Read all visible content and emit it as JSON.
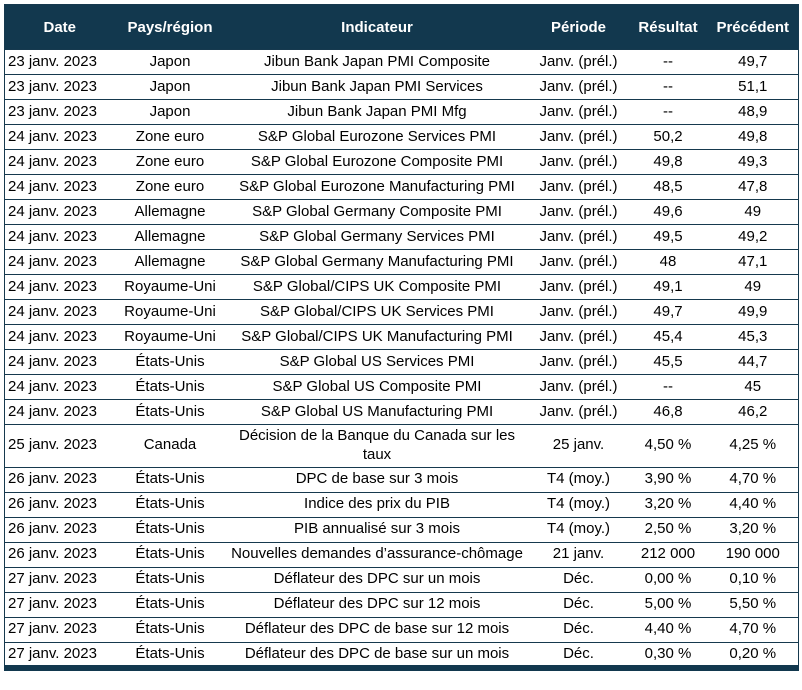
{
  "colors": {
    "header_bg": "#12384e",
    "border": "#16394e",
    "header_text": "#ffffff",
    "row_bg": "#ffffff",
    "body_text": "#000000"
  },
  "table": {
    "headers": [
      {
        "key": "date",
        "label": "Date"
      },
      {
        "key": "region",
        "label": "Pays/région"
      },
      {
        "key": "indicator",
        "label": "Indicateur"
      },
      {
        "key": "period",
        "label": "Période"
      },
      {
        "key": "result",
        "label": "Résultat"
      },
      {
        "key": "previous",
        "label": "Précédent"
      }
    ],
    "rows": [
      {
        "date": "23 janv. 2023",
        "region": "Japon",
        "indicator": "Jibun Bank Japan PMI Composite",
        "period": "Janv. (prél.)",
        "result": "--",
        "previous": "49,7"
      },
      {
        "date": "23 janv. 2023",
        "region": "Japon",
        "indicator": "Jibun Bank Japan PMI Services",
        "period": "Janv. (prél.)",
        "result": "--",
        "previous": "51,1"
      },
      {
        "date": "23 janv. 2023",
        "region": "Japon",
        "indicator": "Jibun Bank Japan PMI Mfg",
        "period": "Janv. (prél.)",
        "result": "--",
        "previous": "48,9"
      },
      {
        "date": "24 janv. 2023",
        "region": "Zone euro",
        "indicator": "S&P Global Eurozone Services PMI",
        "period": "Janv. (prél.)",
        "result": "50,2",
        "previous": "49,8"
      },
      {
        "date": "24 janv. 2023",
        "region": "Zone euro",
        "indicator": "S&P Global Eurozone Composite PMI",
        "period": "Janv. (prél.)",
        "result": "49,8",
        "previous": "49,3"
      },
      {
        "date": "24 janv. 2023",
        "region": "Zone euro",
        "indicator": "S&P Global Eurozone Manufacturing PMI",
        "period": "Janv. (prél.)",
        "result": "48,5",
        "previous": "47,8"
      },
      {
        "date": "24 janv. 2023",
        "region": "Allemagne",
        "indicator": "S&P Global Germany Composite PMI",
        "period": "Janv. (prél.)",
        "result": "49,6",
        "previous": "49"
      },
      {
        "date": "24 janv. 2023",
        "region": "Allemagne",
        "indicator": "S&P Global Germany Services PMI",
        "period": "Janv. (prél.)",
        "result": "49,5",
        "previous": "49,2"
      },
      {
        "date": "24 janv. 2023",
        "region": "Allemagne",
        "indicator": "S&P Global Germany Manufacturing PMI",
        "period": "Janv. (prél.)",
        "result": "48",
        "previous": "47,1"
      },
      {
        "date": "24 janv. 2023",
        "region": "Royaume-Uni",
        "indicator": "S&P Global/CIPS UK Composite PMI",
        "period": "Janv. (prél.)",
        "result": "49,1",
        "previous": "49"
      },
      {
        "date": "24 janv. 2023",
        "region": "Royaume-Uni",
        "indicator": "S&P Global/CIPS UK Services PMI",
        "period": "Janv. (prél.)",
        "result": "49,7",
        "previous": "49,9"
      },
      {
        "date": "24 janv. 2023",
        "region": "Royaume-Uni",
        "indicator": "S&P Global/CIPS UK Manufacturing PMI",
        "period": "Janv. (prél.)",
        "result": "45,4",
        "previous": "45,3"
      },
      {
        "date": "24 janv. 2023",
        "region": "États-Unis",
        "indicator": "S&P Global US Services PMI",
        "period": "Janv. (prél.)",
        "result": "45,5",
        "previous": "44,7"
      },
      {
        "date": "24 janv. 2023",
        "region": "États-Unis",
        "indicator": "S&P Global US Composite PMI",
        "period": "Janv. (prél.)",
        "result": "--",
        "previous": "45"
      },
      {
        "date": "24 janv. 2023",
        "region": "États-Unis",
        "indicator": "S&P Global US Manufacturing PMI",
        "period": "Janv. (prél.)",
        "result": "46,8",
        "previous": "46,2"
      },
      {
        "date": "25 janv. 2023",
        "region": "Canada",
        "indicator": "Décision de la Banque du Canada sur les taux",
        "period": "25 janv.",
        "result": "4,50 %",
        "previous": "4,25 %"
      },
      {
        "date": "26 janv. 2023",
        "region": "États-Unis",
        "indicator": "DPC de base sur 3 mois",
        "period": "T4 (moy.)",
        "result": "3,90 %",
        "previous": "4,70 %"
      },
      {
        "date": "26 janv. 2023",
        "region": "États-Unis",
        "indicator": "Indice des prix du PIB",
        "period": "T4 (moy.)",
        "result": "3,20 %",
        "previous": "4,40 %"
      },
      {
        "date": "26 janv. 2023",
        "region": "États-Unis",
        "indicator": "PIB annualisé sur 3 mois",
        "period": "T4 (moy.)",
        "result": "2,50 %",
        "previous": "3,20 %"
      },
      {
        "date": "26 janv. 2023",
        "region": "États-Unis",
        "indicator": "Nouvelles demandes d’assurance-chômage",
        "period": "21 janv.",
        "result": "212 000",
        "previous": "190 000"
      },
      {
        "date": "27 janv. 2023",
        "region": "États-Unis",
        "indicator": "Déflateur des DPC sur un mois",
        "period": "Déc.",
        "result": "0,00 %",
        "previous": "0,10 %"
      },
      {
        "date": "27 janv. 2023",
        "region": "États-Unis",
        "indicator": "Déflateur des DPC sur 12 mois",
        "period": "Déc.",
        "result": "5,00 %",
        "previous": "5,50 %"
      },
      {
        "date": "27 janv. 2023",
        "region": "États-Unis",
        "indicator": "Déflateur des DPC de base sur 12 mois",
        "period": "Déc.",
        "result": "4,40 %",
        "previous": "4,70 %"
      },
      {
        "date": "27 janv. 2023",
        "region": "États-Unis",
        "indicator": "Déflateur des DPC de base sur un mois",
        "period": "Déc.",
        "result": "0,30 %",
        "previous": "0,20 %"
      }
    ]
  }
}
